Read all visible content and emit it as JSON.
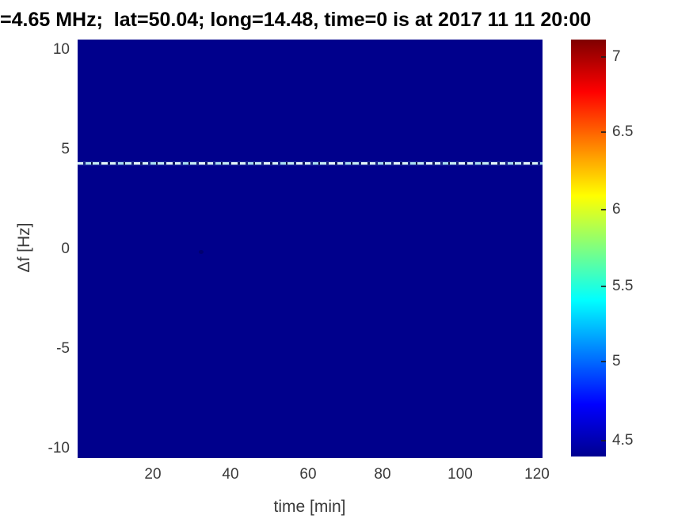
{
  "title": "=4.65 MHz;  lat=50.04; long=14.48, time=0 is at 2017 11 11 20:00",
  "plot": {
    "background_color": "#00008C",
    "x_axis": {
      "label": "time [min]",
      "ticks": [
        "20",
        "40",
        "60",
        "80",
        "100",
        "120"
      ]
    },
    "y_axis": {
      "label": "Δf [Hz]",
      "ticks": [
        "10",
        "5",
        "0",
        "-5",
        "-10"
      ]
    }
  },
  "colorbar": {
    "colormap": "jet",
    "ticks": [
      "7",
      "6.5",
      "6",
      "5.5",
      "5",
      "4.5"
    ],
    "top_color": "#7F0000",
    "bottom_color": "#00008F"
  },
  "chart_data": {
    "type": "heatmap",
    "title": "=4.65 MHz;  lat=50.04; long=14.48, time=0 is at 2017 11 11 20:00",
    "xlabel": "time [min]",
    "ylabel": "Δf [Hz]",
    "xlim": [
      0,
      121
    ],
    "ylim": [
      -10.5,
      10.5
    ],
    "x_ticks": [
      20,
      40,
      60,
      80,
      100,
      120
    ],
    "y_ticks": [
      -10,
      -5,
      0,
      5,
      10
    ],
    "colorbar_ticks": [
      4.5,
      5,
      5.5,
      6,
      6.5,
      7
    ],
    "color_range": [
      4.4,
      7.15
    ],
    "colormap": "jet",
    "grid": false,
    "background_value": 4.45,
    "features": [
      {
        "type": "horizontal_spectral_line",
        "delta_f_hz": 4.2,
        "time_range_min": [
          0,
          121
        ],
        "peak_value_range": [
          5.5,
          7.0
        ],
        "style": "intermittent dashed bright cyan-white line on uniform dark-blue background"
      }
    ]
  }
}
